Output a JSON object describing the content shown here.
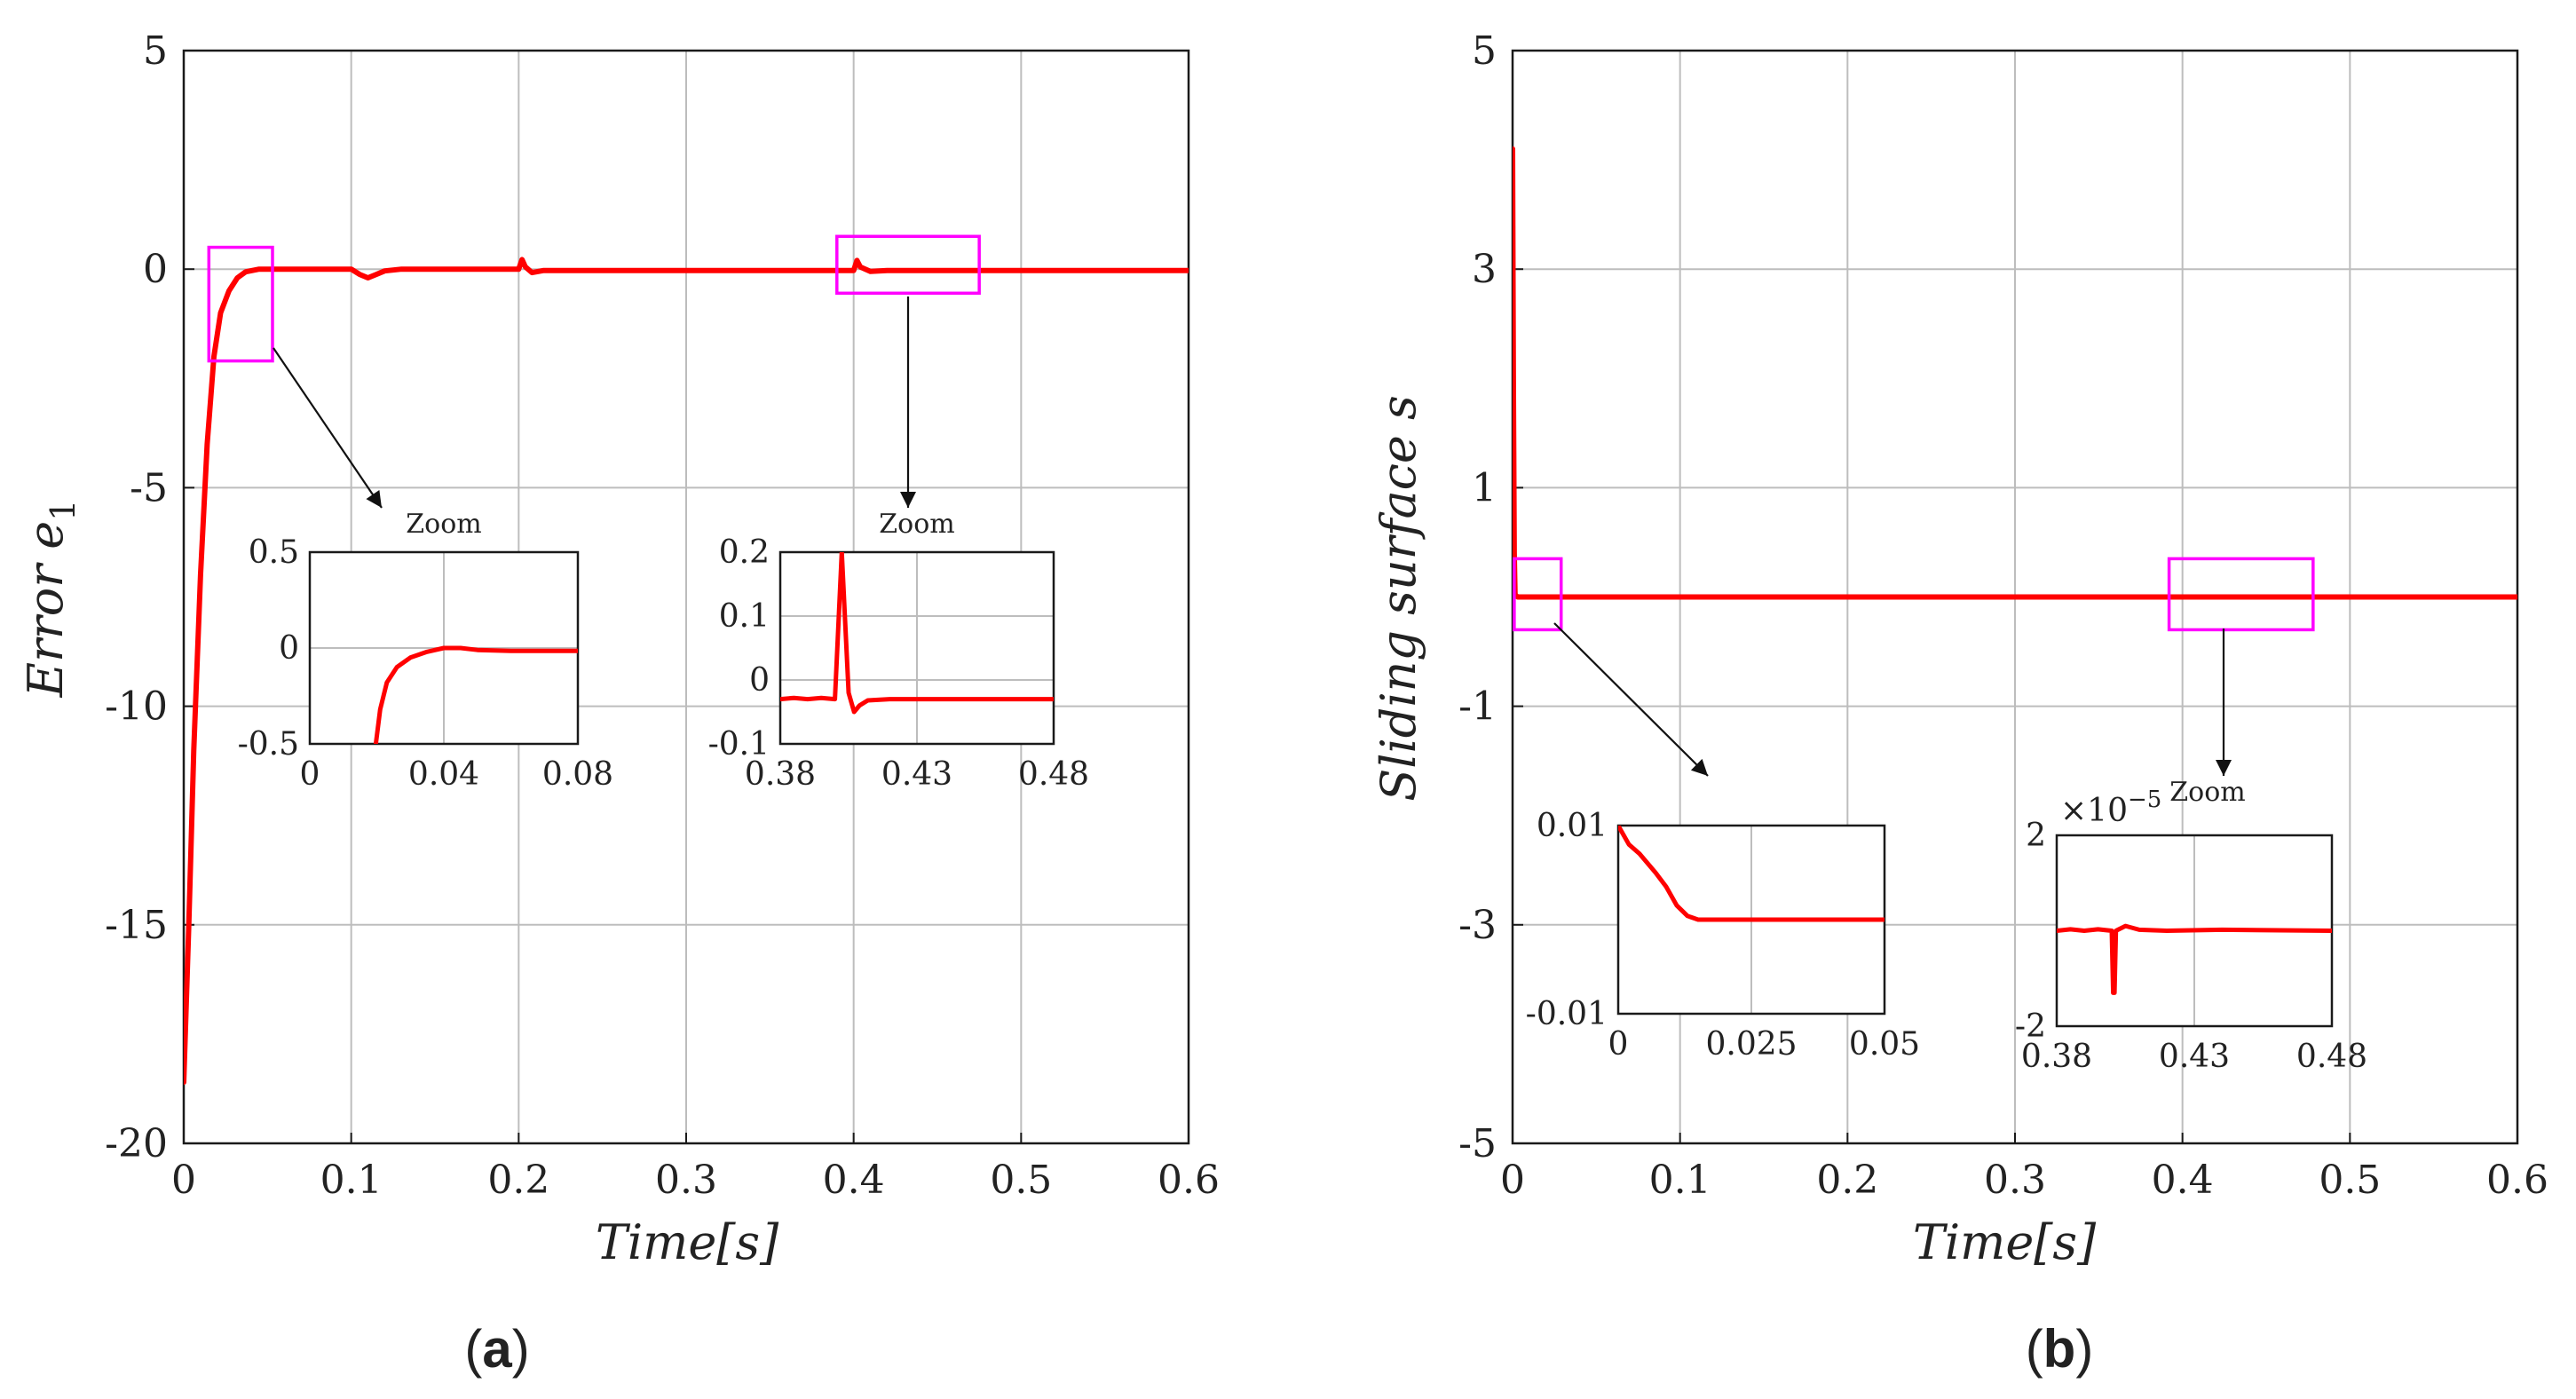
{
  "chart_data": [
    {
      "panel_label": "a",
      "type": "line",
      "xlabel": "Time[s]",
      "ylabel": "Error e",
      "ylabel_sub": "1",
      "xlim": [
        0,
        0.6
      ],
      "ylim": [
        -20,
        5
      ],
      "xticks": [
        "0",
        "0.1",
        "0.2",
        "0.3",
        "0.4",
        "0.5",
        "0.6"
      ],
      "xtick_values": [
        0,
        0.1,
        0.2,
        0.3,
        0.4,
        0.5,
        0.6
      ],
      "yticks": [
        "5",
        "0",
        "-5",
        "-10",
        "-15",
        "-20"
      ],
      "ytick_values": [
        5,
        0,
        -5,
        -10,
        -15,
        -20
      ],
      "grid": true,
      "color": "#ff0000",
      "zoom_color": "#ff00ff",
      "series": [
        {
          "name": "e1",
          "x": [
            0,
            0.003,
            0.006,
            0.01,
            0.014,
            0.018,
            0.022,
            0.027,
            0.032,
            0.037,
            0.045,
            0.06,
            0.1,
            0.105,
            0.11,
            0.115,
            0.12,
            0.13,
            0.2,
            0.202,
            0.204,
            0.208,
            0.215,
            0.39,
            0.4,
            0.402,
            0.404,
            0.41,
            0.42,
            0.6
          ],
          "y": [
            -18.6,
            -15,
            -11,
            -7,
            -4,
            -2,
            -1,
            -0.5,
            -0.2,
            -0.06,
            0,
            0,
            0,
            -0.12,
            -0.2,
            -0.12,
            -0.04,
            0,
            0,
            0.22,
            0.05,
            -0.08,
            -0.03,
            -0.03,
            -0.03,
            0.2,
            0.05,
            -0.05,
            -0.03,
            -0.03
          ]
        }
      ],
      "zoom_boxes": [
        {
          "xrange": [
            0.015,
            0.053
          ],
          "yrange": [
            -2.1,
            0.5
          ]
        },
        {
          "xrange": [
            0.39,
            0.475
          ],
          "yrange": [
            -0.55,
            0.75
          ]
        }
      ],
      "insets": [
        {
          "title": "Zoom",
          "xlim": [
            0,
            0.08
          ],
          "ylim": [
            -0.5,
            0.5
          ],
          "xticks": [
            "0",
            "0.04",
            "0.08"
          ],
          "xtick_values": [
            0,
            0.04,
            0.08
          ],
          "yticks": [
            "0.5",
            "0",
            "-0.5"
          ],
          "ytick_values": [
            0.5,
            0,
            -0.5
          ],
          "x": [
            0.0197,
            0.021,
            0.023,
            0.026,
            0.03,
            0.035,
            0.04,
            0.045,
            0.05,
            0.06,
            0.07,
            0.08
          ],
          "y": [
            -0.5,
            -0.32,
            -0.18,
            -0.1,
            -0.05,
            -0.02,
            0,
            0,
            -0.01,
            -0.015,
            -0.015,
            -0.015
          ]
        },
        {
          "title": "Zoom",
          "xlim": [
            0.38,
            0.48
          ],
          "ylim": [
            -0.1,
            0.2
          ],
          "xticks": [
            "0.38",
            "0.43",
            "0.48"
          ],
          "xtick_values": [
            0.38,
            0.43,
            0.48
          ],
          "yticks": [
            "0.2",
            "0.1",
            "0",
            "-0.1"
          ],
          "ytick_values": [
            0.2,
            0.1,
            0,
            -0.1
          ],
          "x": [
            0.38,
            0.385,
            0.39,
            0.395,
            0.4,
            0.4025,
            0.405,
            0.407,
            0.409,
            0.412,
            0.42,
            0.43,
            0.45,
            0.48
          ],
          "y": [
            -0.03,
            -0.028,
            -0.03,
            -0.028,
            -0.03,
            0.2,
            -0.02,
            -0.05,
            -0.04,
            -0.032,
            -0.03,
            -0.03,
            -0.03,
            -0.03
          ]
        }
      ]
    },
    {
      "panel_label": "b",
      "type": "line",
      "xlabel": "Time[s]",
      "ylabel": "Sliding surface s",
      "xlim": [
        0,
        0.6
      ],
      "ylim": [
        -5,
        5
      ],
      "xticks": [
        "0",
        "0.1",
        "0.2",
        "0.3",
        "0.4",
        "0.5",
        "0.6"
      ],
      "xtick_values": [
        0,
        0.1,
        0.2,
        0.3,
        0.4,
        0.5,
        0.6
      ],
      "yticks": [
        "5",
        "3",
        "1",
        "-1",
        "-3",
        "-5"
      ],
      "ytick_values": [
        5,
        3,
        1,
        -1,
        -3,
        -5
      ],
      "grid": true,
      "color": "#ff0000",
      "zoom_color": "#ff00ff",
      "series": [
        {
          "name": "s",
          "x": [
            0,
            0.0005,
            0.001,
            0.0015,
            0.003,
            0.6
          ],
          "y": [
            4.1,
            2,
            0.4,
            0.02,
            0,
            0
          ]
        }
      ],
      "zoom_boxes": [
        {
          "xrange": [
            0.001,
            0.029
          ],
          "yrange": [
            -0.3,
            0.35
          ]
        },
        {
          "xrange": [
            0.392,
            0.478
          ],
          "yrange": [
            -0.3,
            0.35
          ]
        }
      ],
      "insets": [
        {
          "title": "",
          "xlim": [
            0,
            0.05
          ],
          "ylim": [
            -0.01,
            0.01
          ],
          "xticks": [
            "0",
            "0.025",
            "0.05"
          ],
          "xtick_values": [
            0,
            0.025,
            0.05
          ],
          "yticks": [
            "0.01",
            "-0.01"
          ],
          "ytick_values": [
            0.01,
            -0.01
          ],
          "x": [
            0,
            0.002,
            0.004,
            0.007,
            0.009,
            0.011,
            0.013,
            0.015,
            0.02,
            0.03,
            0.05
          ],
          "y": [
            0.01,
            0.008,
            0.007,
            0.005,
            0.0035,
            0.0015,
            0.0004,
            0,
            0,
            0,
            0
          ]
        },
        {
          "title": "Zoom",
          "scale_label": "×10",
          "scale_exp": "−5",
          "xlim": [
            0.38,
            0.48
          ],
          "ylim": [
            -2,
            2
          ],
          "xticks": [
            "0.38",
            "0.43",
            "0.48"
          ],
          "xtick_values": [
            0.38,
            0.43,
            0.48
          ],
          "yticks": [
            "2",
            "-2"
          ],
          "ytick_values": [
            2,
            -2
          ],
          "x": [
            0.38,
            0.385,
            0.39,
            0.395,
            0.4,
            0.4005,
            0.401,
            0.4015,
            0.405,
            0.41,
            0.42,
            0.44,
            0.48
          ],
          "y": [
            0,
            0.03,
            0,
            0.03,
            0,
            -1.3,
            -1.3,
            0,
            0.1,
            0.02,
            0,
            0.02,
            0
          ]
        }
      ]
    }
  ]
}
